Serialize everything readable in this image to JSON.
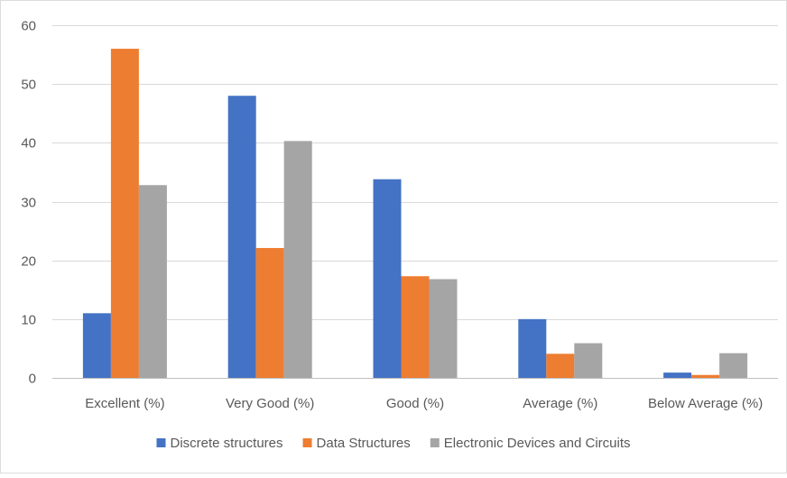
{
  "chart_data": {
    "type": "bar",
    "title": "",
    "xlabel": "",
    "ylabel": "",
    "ylim": [
      0,
      60
    ],
    "yticks": [
      0,
      10,
      20,
      30,
      40,
      50,
      60
    ],
    "grid": true,
    "legend_position": "bottom",
    "categories": [
      "Excellent (%)",
      "Very Good (%)",
      "Good (%)",
      "Average (%)",
      "Below Average (%)"
    ],
    "series": [
      {
        "name": "Discrete structures",
        "color": "#4472c4",
        "values": [
          11,
          48,
          33.8,
          10,
          0.9
        ]
      },
      {
        "name": "Data Structures",
        "color": "#ed7d31",
        "values": [
          56,
          22.1,
          17.3,
          4.1,
          0.5
        ]
      },
      {
        "name": "Electronic Devices and Circuits",
        "color": "#a5a5a5",
        "values": [
          32.8,
          40.3,
          16.8,
          5.9,
          4.2
        ]
      }
    ]
  }
}
